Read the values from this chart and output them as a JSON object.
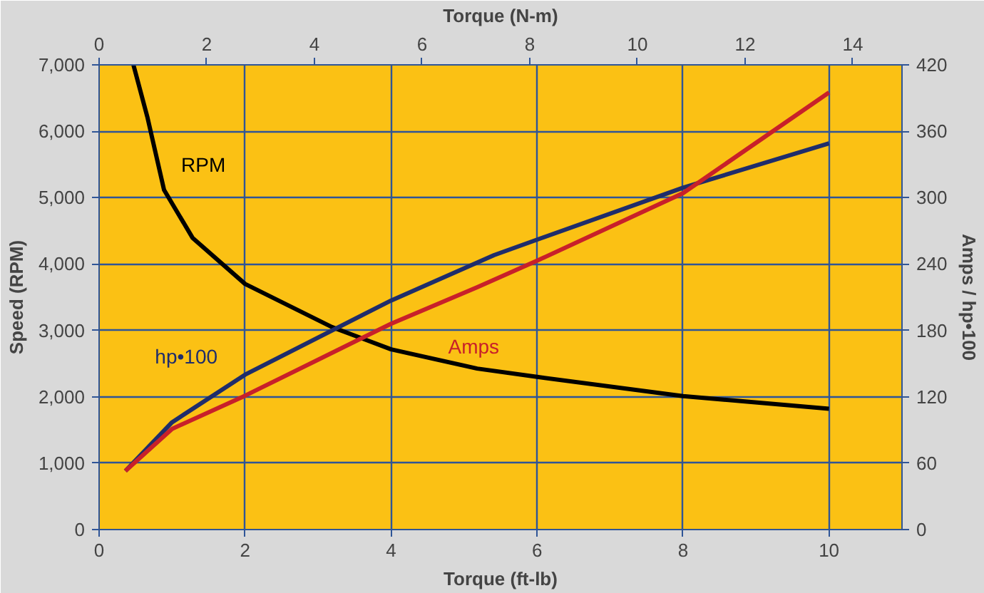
{
  "chart_data": {
    "type": "line",
    "xlabel": "Torque (ft-lb)",
    "x2label": "Torque (N-m)",
    "ylabel": "Speed (RPM)",
    "y2label": "Amps / hp•100",
    "xlim": [
      0,
      11
    ],
    "xticks": [
      0,
      2,
      4,
      6,
      8,
      10
    ],
    "x2lim": [
      0,
      14.914
    ],
    "x2ticks": [
      0,
      2,
      4,
      6,
      8,
      10,
      12,
      14
    ],
    "ylim": [
      0,
      7000
    ],
    "yticks": [
      {
        "value": 0,
        "label": "0"
      },
      {
        "value": 1000,
        "label": "1,000"
      },
      {
        "value": 2000,
        "label": "2,000"
      },
      {
        "value": 3000,
        "label": "3,000"
      },
      {
        "value": 4000,
        "label": "4,000"
      },
      {
        "value": 5000,
        "label": "5,000"
      },
      {
        "value": 6000,
        "label": "6,000"
      },
      {
        "value": 7000,
        "label": "7,000"
      }
    ],
    "y2lim": [
      0,
      420
    ],
    "y2ticks": [
      0,
      60,
      120,
      180,
      240,
      300,
      360,
      420
    ],
    "grid": true,
    "legend": false,
    "marker": "none",
    "line_style": "solid",
    "series": [
      {
        "name": "RPM",
        "color": "#000000",
        "x": [
          0.47,
          0.66,
          0.89,
          1.28,
          2.0,
          3.19,
          4.0,
          5.18,
          6.0,
          8.0,
          10.0
        ],
        "values": [
          7000,
          6220,
          5115,
          4395,
          3700,
          3050,
          2715,
          2425,
          2300,
          2010,
          1820
        ]
      },
      {
        "name": "hp•100",
        "color": "#1f2d6b",
        "axis": "y2",
        "x": [
          0.36,
          1.0,
          2.0,
          4.0,
          5.41,
          6.0,
          8.0,
          10.0
        ],
        "values": [
          53,
          97,
          140,
          207,
          248,
          262,
          309,
          349
        ]
      },
      {
        "name": "Amps",
        "color": "#c8202a",
        "axis": "y2",
        "x": [
          0.36,
          1.0,
          2.0,
          4.0,
          5.18,
          6.0,
          8.0,
          10.0
        ],
        "values": [
          53,
          91,
          121,
          186,
          219,
          243,
          304,
          395
        ]
      }
    ]
  }
}
